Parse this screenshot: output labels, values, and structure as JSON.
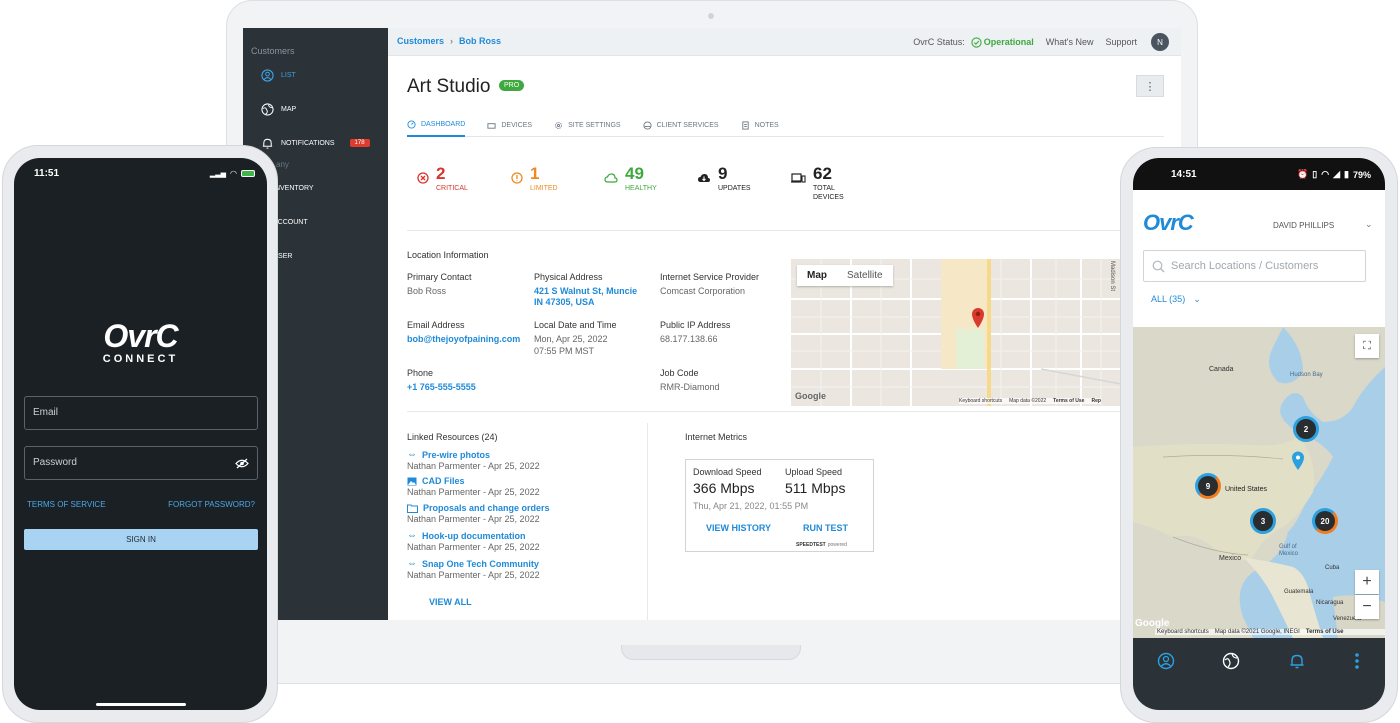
{
  "laptop": {
    "sidebar": {
      "heading": "Customers",
      "items": [
        {
          "label": "LIST",
          "icon": "user-circle-icon",
          "active": true
        },
        {
          "label": "MAP",
          "icon": "globe-icon"
        },
        {
          "label": "NOTIFICATIONS",
          "icon": "bell-icon",
          "badge": "178"
        },
        {
          "label": "INVENTORY",
          "icon": "inventory-icon"
        },
        {
          "label": "ACCOUNT",
          "icon": "account-icon"
        },
        {
          "label": "USER",
          "icon": "user-icon"
        }
      ],
      "faded_text": "any"
    },
    "topbar": {
      "crumb_1": "Customers",
      "crumb_2": "Bob Ross",
      "status_label": "OvrC Status:",
      "status_value": "Operational",
      "whats_new": "What's New",
      "support": "Support",
      "avatar": "N"
    },
    "title": "Art Studio",
    "badge": "PRO",
    "tabs": [
      {
        "label": "DASHBOARD",
        "active": true
      },
      {
        "label": "DEVICES"
      },
      {
        "label": "SITE SETTINGS"
      },
      {
        "label": "CLIENT SERVICES"
      },
      {
        "label": "NOTES"
      }
    ],
    "stats": [
      {
        "num": "2",
        "label": "CRITICAL",
        "color": "#d9342b"
      },
      {
        "num": "1",
        "label": "LIMITED",
        "color": "#ef8a1f"
      },
      {
        "num": "49",
        "label": "HEALTHY",
        "color": "#3fa83f"
      },
      {
        "num": "9",
        "label": "UPDATES",
        "color": "#222222"
      },
      {
        "num": "62",
        "label": "TOTAL DEVICES",
        "color": "#222222"
      }
    ],
    "location": {
      "section_title": "Location Information",
      "primary_contact_label": "Primary Contact",
      "primary_contact": "Bob Ross",
      "address_label": "Physical Address",
      "address_line1": "421 S Walnut St, Muncie",
      "address_line2": "IN 47305, USA",
      "isp_label": "Internet Service Provider",
      "isp": "Comcast Corporation",
      "email_label": "Email Address",
      "email": "bob@thejoyofpaining.com",
      "datetime_label": "Local Date and Time",
      "date": "Mon, Apr 25, 2022",
      "time": "07:55 PM MST",
      "ip_label": "Public IP Address",
      "ip": "68.177.138.66",
      "phone_label": "Phone",
      "phone": "+1 765-555-5555",
      "job_label": "Job Code",
      "job": "RMR-Diamond",
      "map_tab_map": "Map",
      "map_tab_satellite": "Satellite",
      "map_street": "Madison St",
      "map_footer_1": "Keyboard shortcuts",
      "map_footer_2": "Map data ©2022",
      "map_footer_3": "Terms of Use",
      "map_footer_4": "Rep",
      "map_google": "Google"
    },
    "linked": {
      "title": "Linked Resources (24)",
      "items": [
        {
          "name": "Pre-wire photos",
          "meta": "Nathan Parmenter - Apr 25, 2022",
          "icon": "link-icon"
        },
        {
          "name": "CAD Files",
          "meta": "Nathan Parmenter - Apr 25, 2022",
          "icon": "image-icon"
        },
        {
          "name": "Proposals and change orders",
          "meta": "Nathan Parmenter - Apr 25, 2022",
          "icon": "folder-icon"
        },
        {
          "name": "Hook-up documentation",
          "meta": "Nathan Parmenter - Apr 25, 2022",
          "icon": "link-icon"
        },
        {
          "name": "Snap One Tech Community",
          "meta": "Nathan Parmenter - Apr 25, 2022",
          "icon": "link-icon"
        }
      ],
      "view_all": "VIEW ALL"
    },
    "metrics": {
      "title": "Internet Metrics",
      "download_label": "Download Speed",
      "download": "366 Mbps",
      "upload_label": "Upload Speed",
      "upload": "511 Mbps",
      "timestamp": "Thu, Apr 21, 2022, 01:55 PM",
      "history": "VIEW HISTORY",
      "run": "RUN TEST",
      "powered_brand": "SPEEDTEST",
      "powered_suffix": "powered"
    }
  },
  "phone_left": {
    "time": "11:51",
    "logo": "OvrC",
    "logo_sub": "CONNECT",
    "email_placeholder": "Email",
    "password_placeholder": "Password",
    "terms": "TERMS OF SERVICE",
    "forgot": "FORGOT PASSWORD?",
    "signin": "SIGN IN"
  },
  "phone_right": {
    "time": "14:51",
    "battery": "79%",
    "logo": "OvrC",
    "user": "DAVID PHILLIPS",
    "search_placeholder": "Search Locations / Customers",
    "filter": "ALL (35)",
    "labels": {
      "canada": "Canada",
      "hudson": "Hudson Bay",
      "us": "United States",
      "gulf_1": "Gulf of",
      "gulf_2": "Mexico",
      "mexico": "Mexico",
      "cuba": "Cuba",
      "guatemala": "Guatemala",
      "nicaragua": "Nicaragua",
      "venezuela": "Venezuela"
    },
    "clusters": [
      "2",
      "9",
      "3",
      "20"
    ],
    "map_footer": "Keyboard shortcuts",
    "map_data": "Map data ©2021 Google, INEGI",
    "terms": "Terms of Use",
    "google": "Google",
    "zoom_in": "+",
    "zoom_out": "−"
  },
  "colors": {
    "accent": "#1f8ad8",
    "sidebar": "#2b3339",
    "critical": "#d9342b",
    "limited": "#ef8a1f",
    "healthy": "#3fa83f"
  }
}
